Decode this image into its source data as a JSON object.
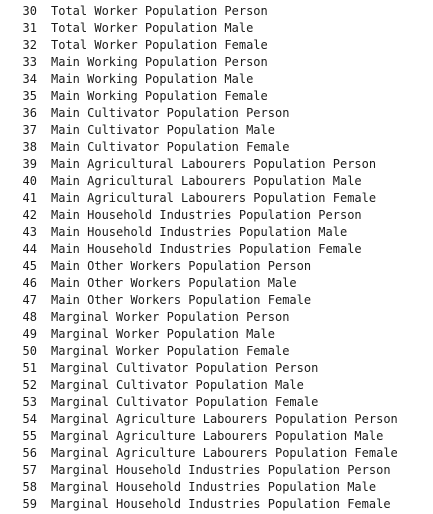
{
  "rows": [
    {
      "index": "30",
      "value": "Total Worker Population Person"
    },
    {
      "index": "31",
      "value": "Total Worker Population Male"
    },
    {
      "index": "32",
      "value": "Total Worker Population Female"
    },
    {
      "index": "33",
      "value": "Main Working Population Person"
    },
    {
      "index": "34",
      "value": "Main Working Population Male"
    },
    {
      "index": "35",
      "value": "Main Working Population Female"
    },
    {
      "index": "36",
      "value": "Main Cultivator Population Person"
    },
    {
      "index": "37",
      "value": "Main Cultivator Population Male"
    },
    {
      "index": "38",
      "value": "Main Cultivator Population Female"
    },
    {
      "index": "39",
      "value": "Main Agricultural Labourers Population Person"
    },
    {
      "index": "40",
      "value": "Main Agricultural Labourers Population Male"
    },
    {
      "index": "41",
      "value": "Main Agricultural Labourers Population Female"
    },
    {
      "index": "42",
      "value": "Main Household Industries Population Person"
    },
    {
      "index": "43",
      "value": "Main Household Industries Population Male"
    },
    {
      "index": "44",
      "value": "Main Household Industries Population Female"
    },
    {
      "index": "45",
      "value": "Main Other Workers Population Person"
    },
    {
      "index": "46",
      "value": "Main Other Workers Population Male"
    },
    {
      "index": "47",
      "value": "Main Other Workers Population Female"
    },
    {
      "index": "48",
      "value": "Marginal Worker Population Person"
    },
    {
      "index": "49",
      "value": "Marginal Worker Population Male"
    },
    {
      "index": "50",
      "value": "Marginal Worker Population Female"
    },
    {
      "index": "51",
      "value": "Marginal Cultivator Population Person"
    },
    {
      "index": "52",
      "value": "Marginal Cultivator Population Male"
    },
    {
      "index": "53",
      "value": "Marginal Cultivator Population Female"
    },
    {
      "index": "54",
      "value": "Marginal Agriculture Labourers Population Person"
    },
    {
      "index": "55",
      "value": "Marginal Agriculture Labourers Population Male"
    },
    {
      "index": "56",
      "value": "Marginal Agriculture Labourers Population Female"
    },
    {
      "index": "57",
      "value": "Marginal Household Industries Population Person"
    },
    {
      "index": "58",
      "value": "Marginal Household Industries Population Male"
    },
    {
      "index": "59",
      "value": "Marginal Household Industries Population Female"
    }
  ]
}
